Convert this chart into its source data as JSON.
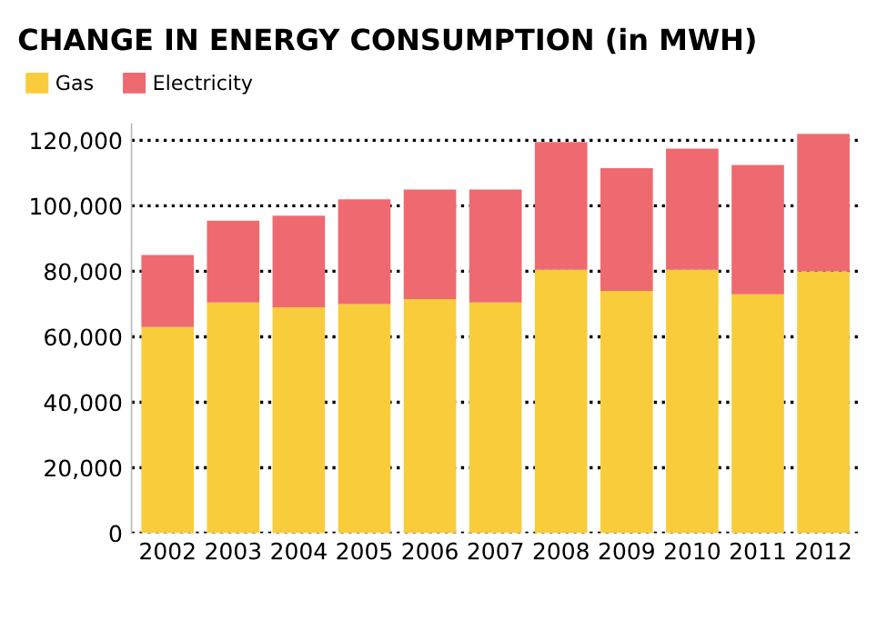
{
  "chart_data": {
    "type": "bar",
    "title": "CHANGE IN ENERGY CONSUMPTION (in MWH)",
    "stacked": true,
    "categories": [
      "2002",
      "2003",
      "2004",
      "2005",
      "2006",
      "2007",
      "2008",
      "2009",
      "2010",
      "2011",
      "2012"
    ],
    "series": [
      {
        "name": "Gas",
        "color": "#f9cc3c",
        "values": [
          63000,
          70500,
          69000,
          70000,
          71500,
          70500,
          80500,
          74000,
          80500,
          73000,
          80000
        ]
      },
      {
        "name": "Electricity",
        "color": "#ee6a70",
        "values": [
          22000,
          25000,
          28000,
          32000,
          33500,
          34500,
          39000,
          37500,
          37000,
          39500,
          42000
        ]
      }
    ],
    "ylim": [
      0,
      125000
    ],
    "yticks": [
      0,
      {
        "value": 20000,
        "label": "20,000"
      },
      {
        "value": 40000,
        "label": "40,000"
      },
      {
        "value": 60000,
        "label": "60,000"
      },
      {
        "value": 80000,
        "label": "80,000"
      },
      {
        "value": 100000,
        "label": "100,000"
      },
      {
        "value": 120000,
        "label": "120,000"
      }
    ],
    "grid": "y",
    "line_style": "dotted",
    "legend": "top left"
  }
}
